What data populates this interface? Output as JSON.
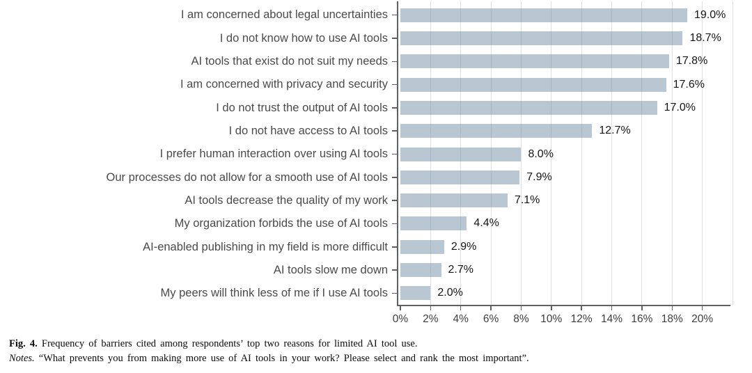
{
  "chart_data": {
    "type": "bar",
    "orientation": "horizontal",
    "title": "",
    "xlabel": "",
    "ylabel": "",
    "categories": [
      "I am concerned about legal uncertainties",
      "I do not know how to use AI tools",
      "AI tools that exist do not suit my needs",
      "I am concerned with privacy and security",
      "I do not trust the output of AI tools",
      "I do not have access to AI tools",
      "I prefer human interaction over using AI tools",
      "Our processes do not allow for a smooth use of AI tools",
      "AI tools decrease the quality of my work",
      "My organization forbids the use of AI tools",
      "AI-enabled publishing in my field is more difficult",
      "AI tools slow me down",
      "My peers will think less of me if I use AI tools"
    ],
    "values": [
      19.0,
      18.7,
      17.8,
      17.6,
      17.0,
      12.7,
      8.0,
      7.9,
      7.1,
      4.4,
      2.9,
      2.7,
      2.0
    ],
    "value_labels": [
      "19.0%",
      "18.7%",
      "17.8%",
      "17.6%",
      "17.0%",
      "12.7%",
      "8.0%",
      "7.9%",
      "7.1%",
      "4.4%",
      "2.9%",
      "2.7%",
      "2.0%"
    ],
    "xlim": [
      0,
      22
    ],
    "x_ticks": [
      {
        "value": 0,
        "label": "0%"
      },
      {
        "value": 2,
        "label": "2%"
      },
      {
        "value": 4,
        "label": "4%"
      },
      {
        "value": 6,
        "label": "6%"
      },
      {
        "value": 8,
        "label": "8%"
      },
      {
        "value": 10,
        "label": "10%"
      },
      {
        "value": 12,
        "label": "12%"
      },
      {
        "value": 14,
        "label": "14%"
      },
      {
        "value": 16,
        "label": "16%"
      },
      {
        "value": 18,
        "label": "18%"
      },
      {
        "value": 20,
        "label": "20%"
      }
    ],
    "gridlines": {
      "orientation": "vertical",
      "interval": 2,
      "from": 2,
      "to": 22
    },
    "legend": null,
    "colors": {
      "bar": "#b8c7d2",
      "axis": "#606060",
      "gridline": "#808890",
      "category_label": "#4a4a4a",
      "value_label": "#141414",
      "tick_label": "#3d3d3d"
    }
  },
  "caption": {
    "fig_label": "Fig. 4.",
    "fig_text": "Frequency of barriers cited among respondents’ top two reasons for limited AI tool use.",
    "notes_label": "Notes.",
    "notes_text": "“What prevents you from making more use of AI tools in your work? Please select and rank the most important”."
  }
}
